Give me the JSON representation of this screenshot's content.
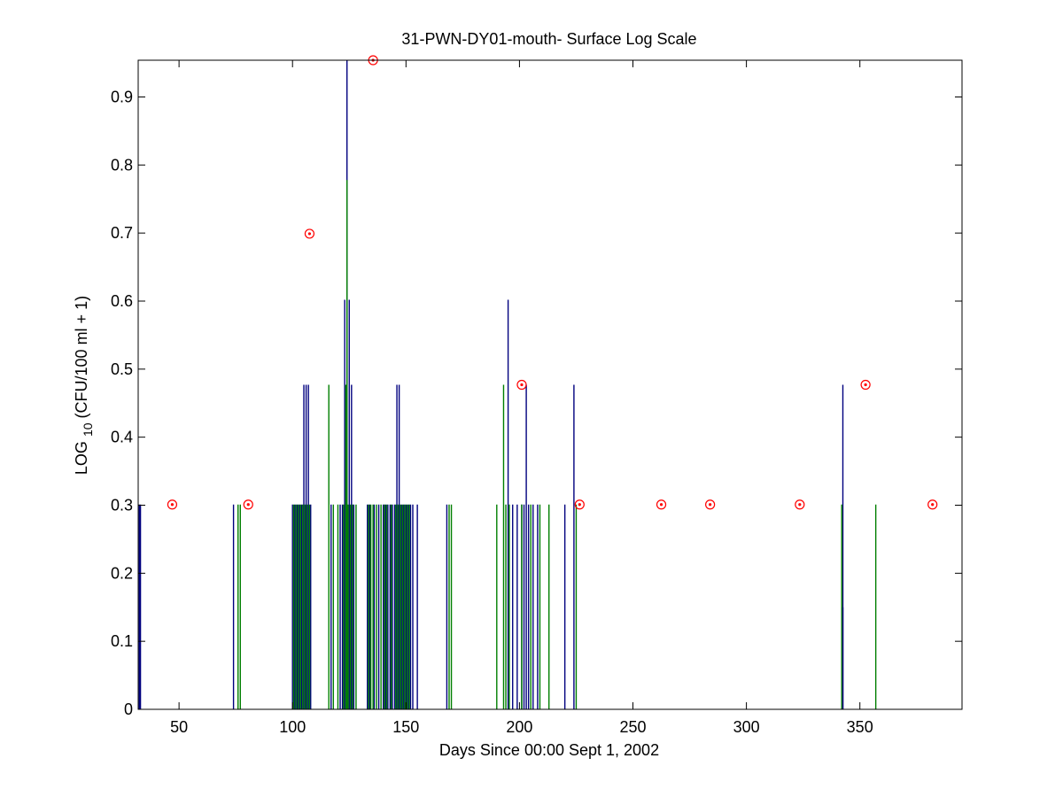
{
  "chart_data": {
    "type": "bar",
    "title": "31-PWN-DY01-mouth- Surface Log Scale",
    "xlabel": "Days Since 00:00 Sept 1, 2002",
    "ylabel": {
      "prefix": "LOG",
      "subscript": "10",
      "suffix": " (CFU/100 ml + 1)"
    },
    "xlim": [
      32,
      395
    ],
    "ylim": [
      0,
      0.954
    ],
    "xticks": [
      50,
      100,
      150,
      200,
      250,
      300,
      350
    ],
    "yticks": [
      0,
      0.1,
      0.2,
      0.3,
      0.4,
      0.5,
      0.6,
      0.7,
      0.8,
      0.9
    ],
    "ytick_labels": [
      "0",
      "0.1",
      "0.2",
      "0.3",
      "0.4",
      "0.5",
      "0.6",
      "0.7",
      "0.8",
      "0.9"
    ],
    "grid": false,
    "series": [
      {
        "color": "#00007f",
        "x": [
          32.5,
          33,
          74,
          100,
          101,
          102,
          103,
          104,
          105,
          106,
          107,
          108,
          117,
          121,
          122,
          123,
          124,
          125,
          126,
          127,
          133,
          134,
          136,
          138,
          140,
          141,
          142,
          143,
          144,
          145,
          146,
          147,
          148,
          149,
          150,
          151,
          152,
          153,
          155,
          168,
          195,
          197,
          199,
          201,
          202,
          203,
          204,
          206,
          208,
          220,
          224,
          342.5
        ],
        "values": [
          0.301,
          0.301,
          0.301,
          0.301,
          0.301,
          0.301,
          0.301,
          0.301,
          0.477,
          0.477,
          0.477,
          0.301,
          0.301,
          0.301,
          0.301,
          0.602,
          0.954,
          0.602,
          0.477,
          0.301,
          0.301,
          0.301,
          0.301,
          0.301,
          0.301,
          0.301,
          0.301,
          0.301,
          0.301,
          0.301,
          0.477,
          0.477,
          0.301,
          0.301,
          0.301,
          0.301,
          0.301,
          0.301,
          0.301,
          0.301,
          0.602,
          0.301,
          0.301,
          0.301,
          0.301,
          0.477,
          0.301,
          0.301,
          0.301,
          0.301,
          0.477,
          0.477
        ]
      },
      {
        "color": "#007f00",
        "x": [
          76,
          77,
          100.5,
          101.5,
          102.5,
          103.5,
          104.5,
          105.5,
          106.5,
          107.5,
          116,
          118,
          120,
          122.5,
          123.5,
          124,
          124.5,
          125.5,
          126.5,
          128,
          133.5,
          134.5,
          135.5,
          137,
          139,
          140.5,
          141.5,
          143.5,
          145.5,
          146.5,
          147.5,
          148.5,
          149.5,
          150.5,
          151.5,
          169,
          170,
          190,
          193,
          194,
          195.5,
          201,
          205,
          209,
          213,
          225,
          342,
          357
        ],
        "values": [
          0.301,
          0.301,
          0.301,
          0.301,
          0.301,
          0.301,
          0.301,
          0.301,
          0.301,
          0.301,
          0.477,
          0.301,
          0.301,
          0.301,
          0.477,
          0.778,
          0.301,
          0.301,
          0.301,
          0.301,
          0.301,
          0.301,
          0.301,
          0.301,
          0.301,
          0.301,
          0.301,
          0.301,
          0.301,
          0.301,
          0.301,
          0.301,
          0.301,
          0.301,
          0.301,
          0.301,
          0.301,
          0.301,
          0.477,
          0.301,
          0.301,
          0.301,
          0.301,
          0.301,
          0.301,
          0.301,
          0.301,
          0.301
        ]
      },
      {
        "color": "#00007f",
        "x": [
          342.5
        ],
        "values": [
          0.15
        ]
      }
    ],
    "markers": {
      "color": "#ff0000",
      "style": "circled-dot",
      "x": [
        47,
        80.5,
        107.5,
        135.5,
        201,
        226.5,
        262.5,
        284,
        323.5,
        352.5,
        382
      ],
      "y": [
        0.301,
        0.301,
        0.699,
        0.954,
        0.477,
        0.301,
        0.301,
        0.301,
        0.301,
        0.477,
        0.301
      ]
    }
  }
}
